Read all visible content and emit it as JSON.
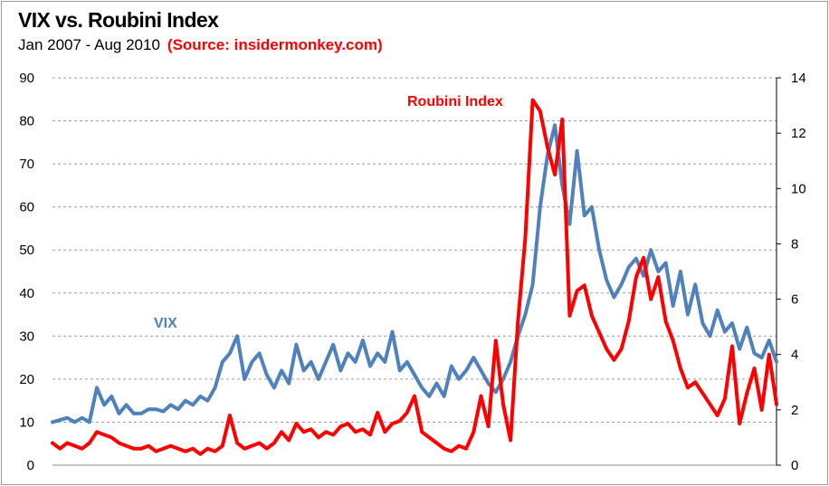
{
  "title": "VIX vs. Roubini Index",
  "subtitle": "Jan 2007 - Aug 2010",
  "source": "(Source: insidermonkey.com)",
  "colors": {
    "vix": "#4f81bd",
    "roubini": "#ff0000",
    "grid": "#9e9e9e"
  },
  "chart_data": {
    "type": "line",
    "title": "VIX vs. Roubini Index",
    "subtitle": "Jan 2007 - Aug 2010",
    "grid": true,
    "ylim_left": [
      0,
      90
    ],
    "ylim_right": [
      0,
      14
    ],
    "left_ticks": [
      "0",
      "10",
      "20",
      "30",
      "40",
      "50",
      "60",
      "70",
      "80",
      "90"
    ],
    "right_ticks": [
      "0",
      "2",
      "4",
      "6",
      "8",
      "10",
      "12",
      "14"
    ],
    "x": [
      0,
      2,
      4,
      6,
      8,
      10,
      12,
      14,
      16,
      18,
      20,
      22,
      24,
      26,
      28,
      30,
      32,
      34,
      36,
      38,
      40,
      42,
      44,
      46,
      48,
      50,
      52,
      54,
      56,
      58,
      60,
      62,
      64,
      66,
      68,
      70,
      72,
      74,
      76,
      78,
      80,
      82,
      84,
      86,
      88,
      90,
      92,
      94,
      96,
      98,
      100,
      102,
      104,
      106,
      108,
      110,
      112,
      114,
      116,
      118,
      120,
      122,
      124,
      126,
      128,
      130,
      132,
      134,
      136,
      138,
      140,
      142,
      144,
      146,
      148,
      150,
      152,
      154,
      156,
      158,
      160,
      162,
      164,
      166,
      168,
      170,
      172,
      174,
      176,
      178,
      180,
      182,
      184,
      186,
      188,
      190,
      192,
      194,
      196
    ],
    "series": [
      {
        "name": "VIX",
        "axis": "left",
        "values": [
          10,
          10.5,
          11,
          10,
          11,
          10,
          18,
          14,
          16,
          12,
          14,
          12,
          12,
          13,
          13,
          12.5,
          14,
          13,
          15,
          14,
          16,
          15,
          18,
          24,
          26,
          30,
          20,
          24,
          26,
          21,
          18,
          22,
          19,
          28,
          22,
          24,
          20,
          24,
          28,
          22,
          26,
          24,
          29,
          23,
          26,
          24,
          31,
          22,
          24,
          21,
          18,
          16,
          19,
          16,
          23,
          20,
          22,
          25,
          22,
          19,
          17,
          20,
          24,
          30,
          35,
          42,
          60,
          72,
          79,
          65,
          56,
          73,
          58,
          60,
          50,
          43,
          39,
          42,
          46,
          48,
          44,
          50,
          45,
          47,
          37,
          45,
          35,
          42,
          33,
          30,
          36,
          31,
          33,
          27,
          32,
          26,
          25,
          29,
          24
        ]
      },
      {
        "name": "Roubini Index",
        "axis": "right",
        "values": [
          0.8,
          0.6,
          0.8,
          0.7,
          0.6,
          0.8,
          1.2,
          1.1,
          1.0,
          0.8,
          0.7,
          0.6,
          0.6,
          0.7,
          0.5,
          0.6,
          0.7,
          0.6,
          0.5,
          0.6,
          0.4,
          0.6,
          0.5,
          0.7,
          1.8,
          0.8,
          0.6,
          0.7,
          0.8,
          0.6,
          0.8,
          1.2,
          0.9,
          1.5,
          1.2,
          1.3,
          1.0,
          1.2,
          1.1,
          1.4,
          1.5,
          1.2,
          1.3,
          1.1,
          1.9,
          1.2,
          1.5,
          1.6,
          1.9,
          2.5,
          1.2,
          1.0,
          0.8,
          0.6,
          0.5,
          0.7,
          0.6,
          1.2,
          2.5,
          1.4,
          4.5,
          2.2,
          0.9,
          5.2,
          8.2,
          13.2,
          12.8,
          11.5,
          10.5,
          12.5,
          5.4,
          6.3,
          6.5,
          5.4,
          4.8,
          4.2,
          3.8,
          4.2,
          5.2,
          6.8,
          7.5,
          6.0,
          6.8,
          5.2,
          4.5,
          3.5,
          2.8,
          3.0,
          2.6,
          2.2,
          1.8,
          2.4,
          4.3,
          1.5,
          2.6,
          3.5,
          2.0,
          4.0,
          2.2
        ]
      }
    ],
    "annotations": [
      {
        "text": "VIX",
        "color": "#4f81bd"
      },
      {
        "text": "Roubini Index",
        "color": "#ff0000"
      }
    ]
  }
}
